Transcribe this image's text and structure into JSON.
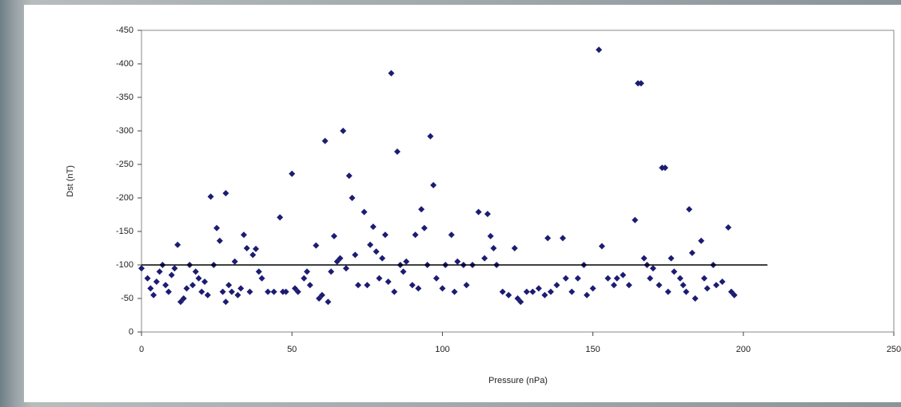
{
  "chart_data": {
    "type": "scatter",
    "xlabel": "Pressure (nPa)",
    "ylabel": "Dst (nT)",
    "xlim": [
      0,
      250
    ],
    "xticks": [
      0,
      50,
      100,
      150,
      200,
      250
    ],
    "ylim": [
      0,
      -450
    ],
    "yticks": [
      0,
      -50,
      -100,
      -150,
      -200,
      -250,
      -300,
      -350,
      -400,
      -450
    ],
    "color": "#1c1c72",
    "x": [
      0,
      2,
      3,
      4,
      5,
      6,
      7,
      8,
      9,
      10,
      11,
      12,
      13,
      14,
      15,
      16,
      17,
      18,
      19,
      20,
      21,
      22,
      23,
      24,
      25,
      26,
      27,
      28,
      28,
      29,
      30,
      31,
      32,
      33,
      34,
      35,
      36,
      37,
      38,
      39,
      40,
      42,
      44,
      46,
      47,
      48,
      50,
      51,
      52,
      54,
      55,
      56,
      58,
      59,
      60,
      61,
      62,
      63,
      64,
      65,
      66,
      67,
      68,
      69,
      70,
      71,
      72,
      74,
      75,
      76,
      77,
      78,
      79,
      80,
      81,
      82,
      83,
      84,
      85,
      86,
      87,
      88,
      90,
      91,
      92,
      93,
      94,
      95,
      96,
      97,
      98,
      100,
      101,
      103,
      104,
      105,
      107,
      108,
      110,
      112,
      114,
      115,
      116,
      117,
      118,
      120,
      122,
      124,
      125,
      126,
      128,
      130,
      132,
      134,
      135,
      136,
      138,
      140,
      141,
      143,
      145,
      147,
      148,
      150,
      152,
      153,
      155,
      157,
      158,
      160,
      162,
      164,
      165,
      166,
      167,
      168,
      169,
      170,
      172,
      173,
      174,
      175,
      176,
      177,
      179,
      180,
      181,
      182,
      183,
      184,
      186,
      187,
      188,
      190,
      191,
      193,
      195,
      196,
      197
    ],
    "values": [
      -95,
      -80,
      -65,
      -55,
      -75,
      -90,
      -100,
      -70,
      -60,
      -85,
      -95,
      -130,
      -45,
      -50,
      -65,
      -100,
      -70,
      -90,
      -80,
      -60,
      -75,
      -55,
      -202,
      -100,
      -155,
      -136,
      -60,
      -207,
      -45,
      -70,
      -60,
      -105,
      -55,
      -65,
      -145,
      -125,
      -60,
      -115,
      -124,
      -90,
      -80,
      -60,
      -60,
      -171,
      -60,
      -60,
      -236,
      -65,
      -60,
      -80,
      -90,
      -70,
      -129,
      -50,
      -55,
      -285,
      -45,
      -90,
      -143,
      -105,
      -110,
      -300,
      -95,
      -233,
      -200,
      -115,
      -70,
      -179,
      -70,
      -130,
      -157,
      -120,
      -80,
      -110,
      -145,
      -75,
      -386,
      -60,
      -269,
      -100,
      -90,
      -105,
      -70,
      -145,
      -65,
      -183,
      -155,
      -100,
      -292,
      -219,
      -80,
      -65,
      -100,
      -145,
      -60,
      -105,
      -100,
      -70,
      -100,
      -179,
      -110,
      -176,
      -143,
      -125,
      -100,
      -60,
      -55,
      -125,
      -50,
      -45,
      -60,
      -60,
      -65,
      -55,
      -140,
      -60,
      -70,
      -140,
      -80,
      -60,
      -80,
      -100,
      -55,
      -65,
      -421,
      -128,
      -80,
      -70,
      -80,
      -85,
      -70,
      -167,
      -371,
      -371,
      -110,
      -100,
      -80,
      -95,
      -70,
      -245,
      -245,
      -60,
      -110,
      -90,
      -80,
      -70,
      -60,
      -183,
      -118,
      -50,
      -136,
      -80,
      -65,
      -100,
      -70,
      -75,
      -156,
      -60,
      -55
    ],
    "trend_line": {
      "x": [
        0,
        208
      ],
      "values": [
        -100,
        -100
      ],
      "color": "#000000"
    }
  }
}
